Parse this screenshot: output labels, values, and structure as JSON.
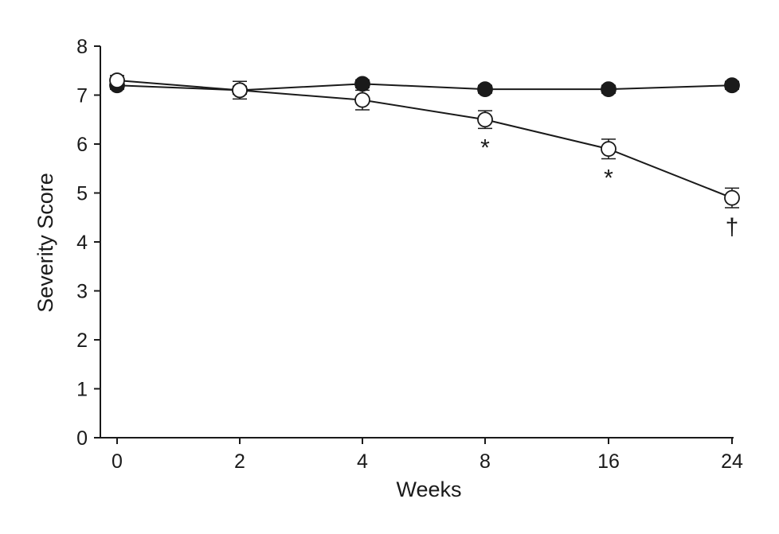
{
  "chart_data": {
    "type": "line",
    "title": "",
    "xlabel": "Weeks",
    "ylabel": "Severity Score",
    "categories": [
      "0",
      "2",
      "4",
      "8",
      "16",
      "24"
    ],
    "ylim": [
      0,
      8
    ],
    "yticks": [
      "0",
      "1",
      "2",
      "3",
      "4",
      "5",
      "6",
      "7",
      "8"
    ],
    "grid": false,
    "legend": "none",
    "series": [
      {
        "marker": "filled-circle",
        "color": "#1a1a1a",
        "values": [
          7.2,
          7.1,
          7.23,
          7.12,
          7.12,
          7.2
        ],
        "error": [
          0.08,
          0.08,
          0.08,
          0.08,
          0.08,
          0.08
        ]
      },
      {
        "marker": "open-circle",
        "color": "#1a1a1a",
        "values": [
          7.3,
          7.1,
          6.9,
          6.5,
          5.9,
          4.9
        ],
        "error": [
          0.1,
          0.18,
          0.2,
          0.18,
          0.2,
          0.2
        ]
      }
    ],
    "annotations": [
      {
        "category": "8",
        "text": "*",
        "series": 1
      },
      {
        "category": "16",
        "text": "*",
        "series": 1
      },
      {
        "category": "24",
        "text": "†",
        "series": 1
      }
    ]
  }
}
